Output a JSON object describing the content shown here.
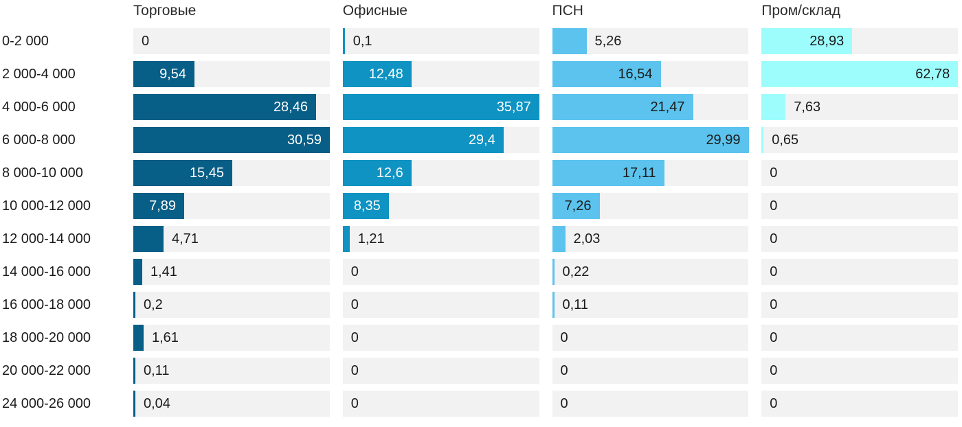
{
  "chart_data": {
    "type": "bar",
    "orientation": "horizontal",
    "title": "",
    "scaling": "each column scaled to its own max value",
    "track_color": "#f2f2f2",
    "text_color": "#1b1b1b",
    "header_text_color": "#2b2b2b",
    "categories": [
      "0-2 000",
      "2 000-4 000",
      "4 000-6 000",
      "6 000-8 000",
      "8 000-10 000",
      "10 000-12 000",
      "12 000-14 000",
      "14 000-16 000",
      "16 000-18 000",
      "18 000-20 000",
      "20 000-22 000",
      "24 000-26 000"
    ],
    "series": [
      {
        "name": "Торговые",
        "color": "#075e86",
        "inside_label_color": "#ffffff",
        "values": [
          0,
          9.54,
          28.46,
          30.59,
          15.45,
          7.89,
          4.71,
          1.41,
          0.2,
          1.61,
          0.11,
          0.04
        ],
        "labels": [
          "0",
          "9,54",
          "28,46",
          "30,59",
          "15,45",
          "7,89",
          "4,71",
          "1,41",
          "0,2",
          "1,61",
          "0,11",
          "0,04"
        ]
      },
      {
        "name": "Офисные",
        "color": "#0e93c2",
        "inside_label_color": "#ffffff",
        "values": [
          0.1,
          12.48,
          35.87,
          29.4,
          12.6,
          8.35,
          1.21,
          0,
          0,
          0,
          0,
          0
        ],
        "labels": [
          "0,1",
          "12,48",
          "35,87",
          "29,4",
          "12,6",
          "8,35",
          "1,21",
          "0",
          "0",
          "0",
          "0",
          "0"
        ]
      },
      {
        "name": "ПСН",
        "color": "#5bc3ee",
        "inside_label_color": "#1b1b1b",
        "values": [
          5.26,
          16.54,
          21.47,
          29.99,
          17.11,
          7.26,
          2.03,
          0.22,
          0.11,
          0,
          0,
          0
        ],
        "labels": [
          "5,26",
          "16,54",
          "21,47",
          "29,99",
          "17,11",
          "7,26",
          "2,03",
          "0,22",
          "0,11",
          "0",
          "0",
          "0"
        ]
      },
      {
        "name": "Пром/склад",
        "color": "#9dfdfd",
        "inside_label_color": "#1b1b1b",
        "values": [
          28.93,
          62.78,
          7.63,
          0.65,
          0,
          0,
          0,
          0,
          0,
          0,
          0,
          0
        ],
        "labels": [
          "28,93",
          "62,78",
          "7,63",
          "0,65",
          "0",
          "0",
          "0",
          "0",
          "0",
          "0",
          "0",
          "0"
        ]
      }
    ]
  }
}
